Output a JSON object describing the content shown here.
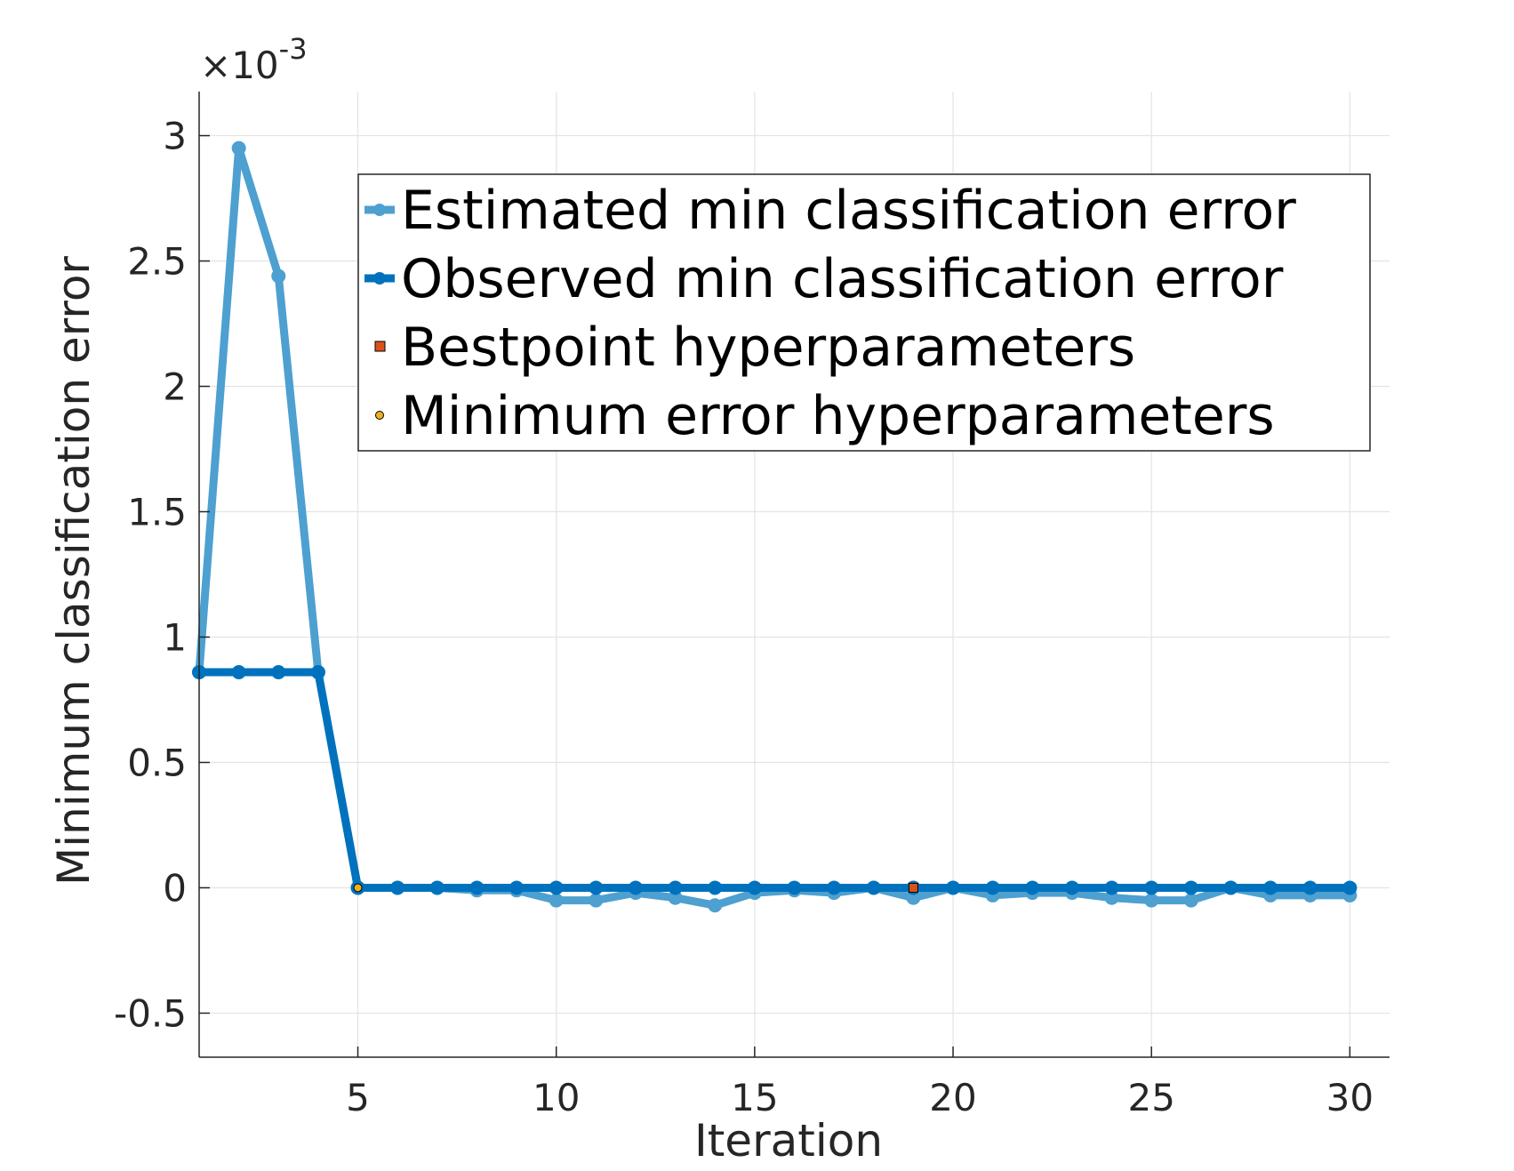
{
  "chart_data": {
    "type": "line",
    "title": "",
    "xlabel": "Iteration",
    "ylabel": "Minimum classification error",
    "exponent_base": "×10",
    "exponent_power": "-3",
    "xlim": [
      1,
      31
    ],
    "ylim": [
      -0.0006757,
      0.0031757
    ],
    "xticks": [
      5,
      10,
      15,
      20,
      25,
      30
    ],
    "xtick_labels": [
      "5",
      "10",
      "15",
      "20",
      "25",
      "30"
    ],
    "yticks": [
      -0.0005,
      0,
      0.0005,
      0.001,
      0.0015,
      0.002,
      0.0025,
      0.003
    ],
    "ytick_labels": [
      "-0.5",
      "0",
      "0.5",
      "1",
      "1.5",
      "2",
      "2.5",
      "3"
    ],
    "grid": true,
    "legend_position": "top-right",
    "x": [
      1,
      2,
      3,
      4,
      5,
      6,
      7,
      8,
      9,
      10,
      11,
      12,
      13,
      14,
      15,
      16,
      17,
      18,
      19,
      20,
      21,
      22,
      23,
      24,
      25,
      26,
      27,
      28,
      29,
      30
    ],
    "series": [
      {
        "name": "Estimated min classification error",
        "color": "#4DA0D0",
        "values": [
          0.00086,
          0.00295,
          0.00244,
          0.00086,
          0.0,
          0.0,
          0.0,
          -1e-05,
          -1e-05,
          -5e-05,
          -5e-05,
          -2e-05,
          -4e-05,
          -7e-05,
          -2e-05,
          -1e-05,
          -2e-05,
          0.0,
          -4e-05,
          0.0,
          -3e-05,
          -2e-05,
          -2e-05,
          -4e-05,
          -5e-05,
          -5e-05,
          0.0,
          -3e-05,
          -3e-05,
          -3e-05
        ]
      },
      {
        "name": "Observed min classification error",
        "color": "#0072BD",
        "values": [
          0.00086,
          0.00086,
          0.00086,
          0.00086,
          0.0,
          0.0,
          0.0,
          0.0,
          0.0,
          0.0,
          0.0,
          0.0,
          0.0,
          0.0,
          0.0,
          0.0,
          0.0,
          0.0,
          0.0,
          0.0,
          0.0,
          0.0,
          0.0,
          0.0,
          0.0,
          0.0,
          0.0,
          0.0,
          0.0,
          0.0
        ]
      },
      {
        "name": "Bestpoint hyperparameters",
        "color": "#D95319",
        "marker": "square",
        "points": [
          {
            "x": 19,
            "y": 0.0
          }
        ]
      },
      {
        "name": "Minimum error hyperparameters",
        "color": "#EDB120",
        "marker": "circle",
        "points": [
          {
            "x": 5,
            "y": 0.0
          }
        ]
      }
    ]
  }
}
